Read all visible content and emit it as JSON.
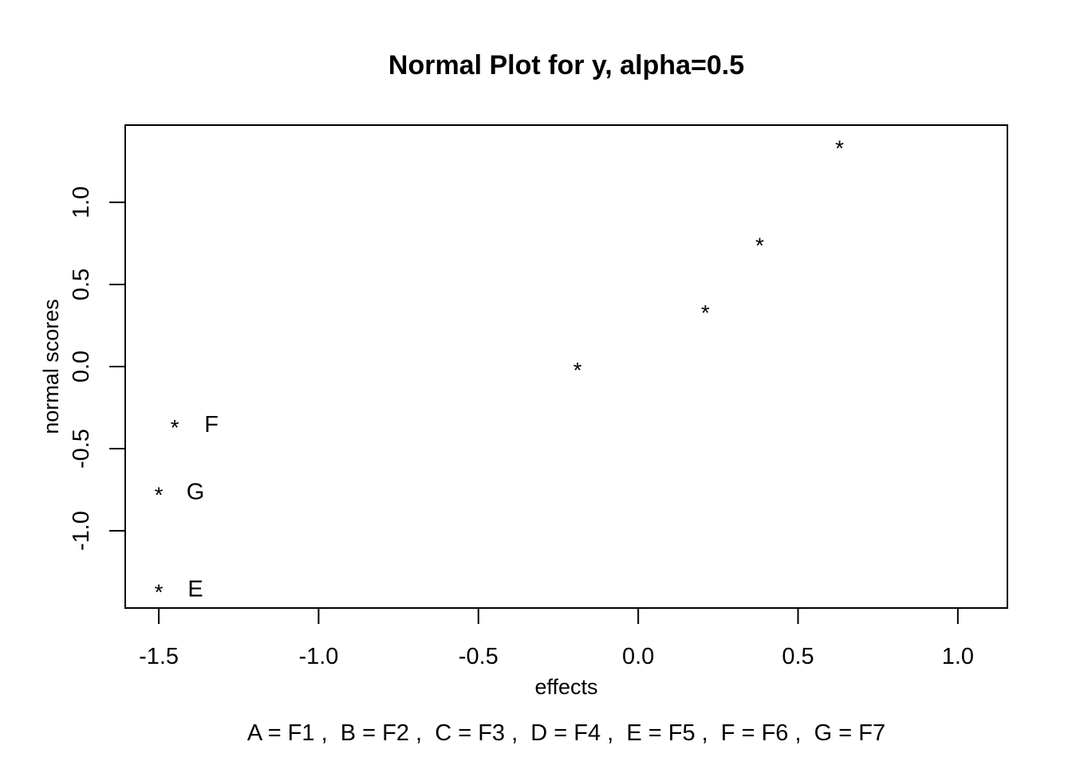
{
  "chart_data": {
    "type": "scatter",
    "title": "Normal Plot for y, alpha=0.5",
    "xlabel": "effects",
    "ylabel": "normal scores",
    "xlim": [
      -1.605,
      1.155
    ],
    "ylim": [
      -1.47,
      1.47
    ],
    "xticks": [
      -1.5,
      -1.0,
      -0.5,
      0.0,
      0.5,
      1.0
    ],
    "xtick_labels": [
      "-1.5",
      "-1.0",
      "-0.5",
      "0.0",
      "0.5",
      "1.0"
    ],
    "yticks": [
      -1.0,
      -0.5,
      0.0,
      0.5,
      1.0
    ],
    "ytick_labels": [
      "-1.0",
      "-0.5",
      "0.0",
      "0.5",
      "1.0"
    ],
    "marker": "*",
    "grid": false,
    "points": [
      {
        "x": -1.5,
        "y": -1.35,
        "label": "E"
      },
      {
        "x": -1.5,
        "y": -0.76,
        "label": "G"
      },
      {
        "x": -1.45,
        "y": -0.35,
        "label": "F"
      },
      {
        "x": -0.19,
        "y": 0.0,
        "label": ""
      },
      {
        "x": 0.21,
        "y": 0.35,
        "label": ""
      },
      {
        "x": 0.38,
        "y": 0.76,
        "label": ""
      },
      {
        "x": 0.63,
        "y": 1.35,
        "label": ""
      }
    ],
    "legend_text": "A = F1 ,  B = F2 ,  C = F3 ,  D = F4 ,  E = F5 ,  F = F6 ,  G = F7"
  }
}
